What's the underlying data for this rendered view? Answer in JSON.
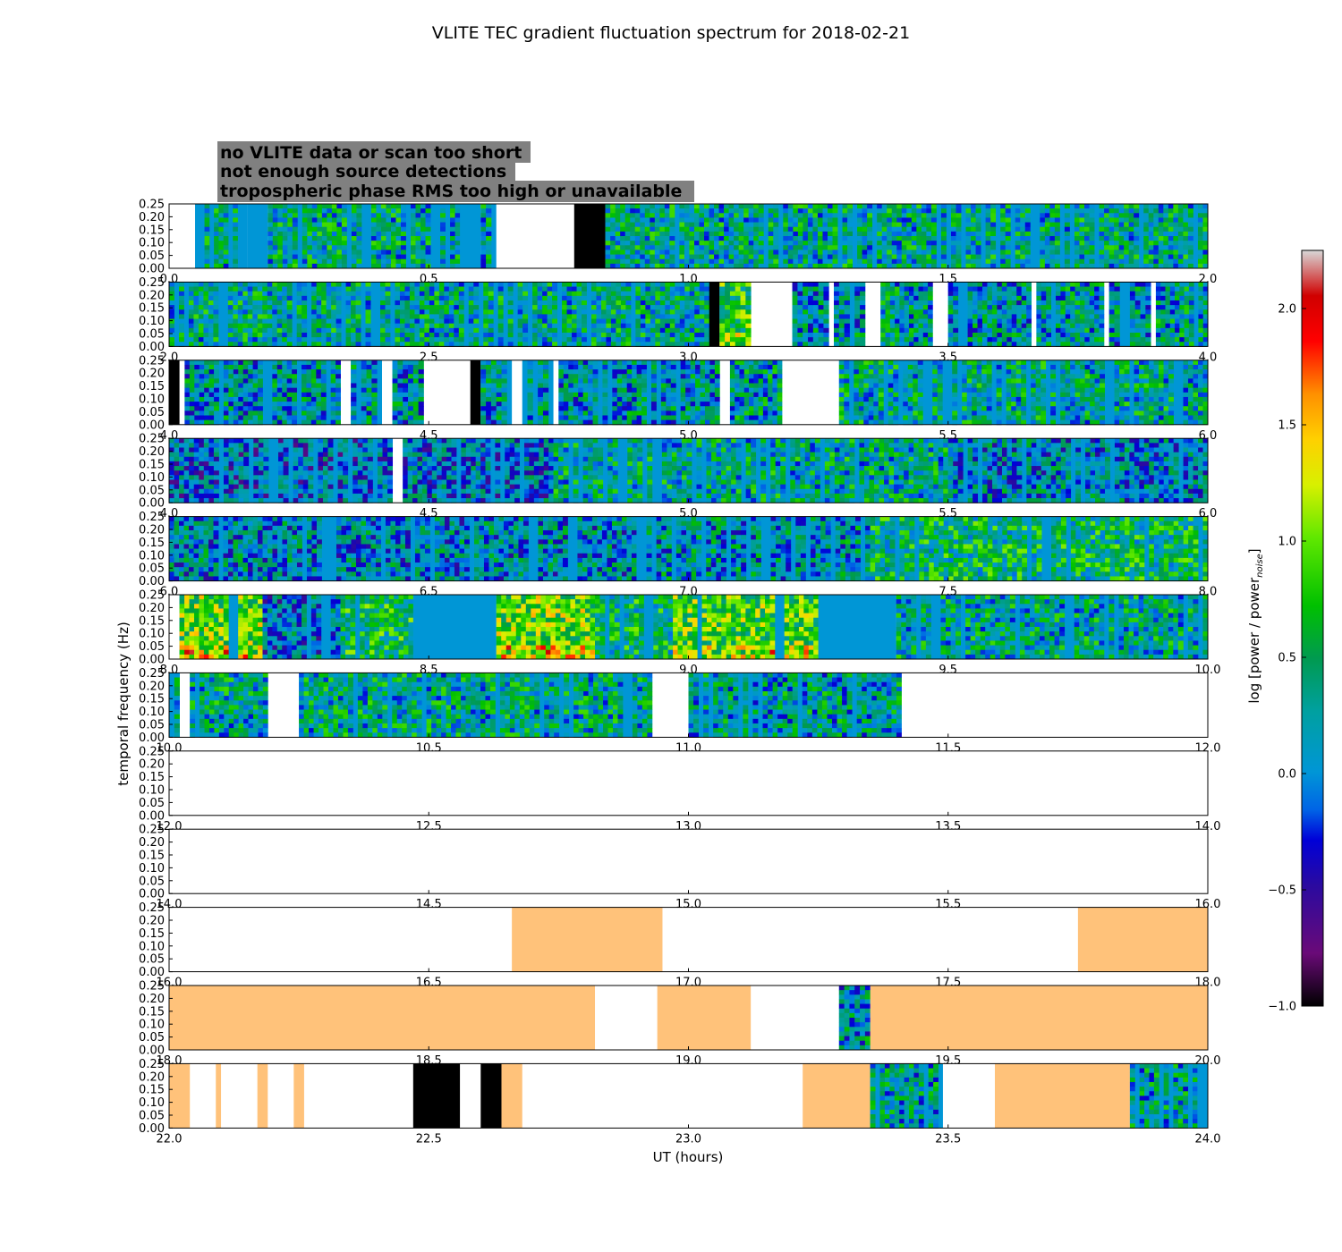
{
  "chart_data": {
    "type": "heatmap",
    "title": "VLITE TEC gradient fluctuation spectrum for 2018-02-21",
    "xlabel": "UT (hours)",
    "ylabel": "temporal frequency (Hz)",
    "colorbar_label": "log [power / power",
    "colorbar_label_sub": "noise",
    "colorbar_label_close": "]",
    "colorbar_range": [
      -1.0,
      2.25
    ],
    "colorbar_ticks": [
      "2.0",
      "1.5",
      "1.0",
      "0.5",
      "0.0",
      "−0.5",
      "−1.0"
    ],
    "colorbar_tick_values": [
      2.0,
      1.5,
      1.0,
      0.5,
      0.0,
      -0.5,
      -1.0
    ],
    "ytick_labels": [
      "0.25",
      "0.20",
      "0.15",
      "0.10",
      "0.05",
      "0.00"
    ],
    "ytick_values": [
      0.25,
      0.2,
      0.15,
      0.1,
      0.05,
      0.0
    ],
    "ylim": [
      0,
      0.25
    ],
    "legend": [
      {
        "text": "no VLITE data or scan too short",
        "text_color": "#ffffff"
      },
      {
        "text": "not enough source detections",
        "text_color": "#000000"
      },
      {
        "text": "tropospheric phase RMS too high or unavailable",
        "text_color": "#ffc27a"
      }
    ],
    "legend_box_color": "#808080",
    "colors": {
      "flag_black": "#000000",
      "flag_troposphere": "#ffc27a",
      "no_data": "#ffffff",
      "base": "#0096d6"
    },
    "panels": [
      {
        "xlim": [
          0.0,
          2.0
        ],
        "xticks": [
          "0.0",
          "0.5",
          "1.0",
          "1.5",
          "2.0"
        ],
        "segments": [
          {
            "start": 0.05,
            "end": 0.15,
            "kind": "noise",
            "level": 0.35
          },
          {
            "start": 0.15,
            "end": 0.19,
            "kind": "quiet"
          },
          {
            "start": 0.19,
            "end": 0.56,
            "kind": "noise",
            "level": 0.35
          },
          {
            "start": 0.56,
            "end": 0.6,
            "kind": "quiet"
          },
          {
            "start": 0.6,
            "end": 0.63,
            "kind": "noise",
            "level": 0.3
          },
          {
            "start": 0.78,
            "end": 0.84,
            "kind": "black"
          },
          {
            "start": 0.84,
            "end": 2.0,
            "kind": "noise",
            "level": 0.35
          }
        ]
      },
      {
        "xlim": [
          2.0,
          4.0
        ],
        "xticks": [
          "2.0",
          "2.5",
          "3.0",
          "3.5",
          "4.0"
        ],
        "segments": [
          {
            "start": 2.0,
            "end": 3.04,
            "kind": "noise",
            "level": 0.35
          },
          {
            "start": 3.04,
            "end": 3.06,
            "kind": "black"
          },
          {
            "start": 3.06,
            "end": 3.12,
            "kind": "noise",
            "level": 0.6
          },
          {
            "start": 3.2,
            "end": 3.27,
            "kind": "noise",
            "level": 0.25
          },
          {
            "start": 3.28,
            "end": 3.34,
            "kind": "noise",
            "level": 0.25
          },
          {
            "start": 3.37,
            "end": 3.47,
            "kind": "noise",
            "level": 0.3
          },
          {
            "start": 3.5,
            "end": 3.66,
            "kind": "noise",
            "level": 0.25
          },
          {
            "start": 3.67,
            "end": 3.8,
            "kind": "noise",
            "level": 0.3
          },
          {
            "start": 3.81,
            "end": 3.89,
            "kind": "noise",
            "level": 0.25
          },
          {
            "start": 3.9,
            "end": 4.0,
            "kind": "noise",
            "level": 0.3
          }
        ]
      },
      {
        "xlim": [
          4.0,
          6.0
        ],
        "xticks": [
          "4.0",
          "4.5",
          "5.0",
          "5.5",
          "6.0"
        ],
        "segments": [
          {
            "start": 4.0,
            "end": 4.02,
            "kind": "black"
          },
          {
            "start": 4.03,
            "end": 4.33,
            "kind": "noise",
            "level": 0.25
          },
          {
            "start": 4.35,
            "end": 4.41,
            "kind": "noise",
            "level": 0.25
          },
          {
            "start": 4.43,
            "end": 4.49,
            "kind": "noise",
            "level": 0.25
          },
          {
            "start": 4.58,
            "end": 4.6,
            "kind": "black"
          },
          {
            "start": 4.6,
            "end": 4.66,
            "kind": "noise",
            "level": 0.25
          },
          {
            "start": 4.68,
            "end": 4.74,
            "kind": "noise",
            "level": 0.25
          },
          {
            "start": 4.75,
            "end": 5.06,
            "kind": "noise",
            "level": 0.25
          },
          {
            "start": 5.08,
            "end": 5.18,
            "kind": "noise",
            "level": 0.3
          },
          {
            "start": 5.29,
            "end": 6.0,
            "kind": "noise",
            "level": 0.35
          }
        ]
      },
      {
        "xlim": [
          4.0,
          6.0
        ],
        "xticks": [
          "4.0",
          "4.5",
          "5.0",
          "5.5",
          "6.0"
        ],
        "segments": [
          {
            "start": 4.0,
            "end": 4.43,
            "kind": "noise",
            "level": 0.1
          },
          {
            "start": 4.45,
            "end": 4.74,
            "kind": "noise",
            "level": 0.15
          },
          {
            "start": 4.74,
            "end": 5.5,
            "kind": "noise",
            "level": 0.35
          },
          {
            "start": 5.5,
            "end": 6.0,
            "kind": "noise",
            "level": 0.2
          }
        ]
      },
      {
        "xlim": [
          6.0,
          8.0
        ],
        "xticks": [
          "6.0",
          "6.5",
          "7.0",
          "7.5",
          "8.0"
        ],
        "segments": [
          {
            "start": 6.0,
            "end": 6.9,
            "kind": "noise",
            "level": 0.2
          },
          {
            "start": 6.9,
            "end": 7.35,
            "kind": "noise",
            "level": 0.25
          },
          {
            "start": 7.35,
            "end": 8.0,
            "kind": "noise",
            "level": 0.45
          }
        ]
      },
      {
        "xlim": [
          8.0,
          10.0
        ],
        "xticks": [
          "8.0",
          "8.5",
          "9.0",
          "9.5",
          "10.0"
        ],
        "segments": [
          {
            "start": 8.02,
            "end": 8.18,
            "kind": "noise",
            "level": 0.75
          },
          {
            "start": 8.18,
            "end": 8.33,
            "kind": "noise",
            "level": 0.15
          },
          {
            "start": 8.33,
            "end": 8.47,
            "kind": "noise",
            "level": 0.5
          },
          {
            "start": 8.47,
            "end": 8.63,
            "kind": "quiet"
          },
          {
            "start": 8.63,
            "end": 8.82,
            "kind": "noise",
            "level": 0.75
          },
          {
            "start": 8.82,
            "end": 8.97,
            "kind": "noise",
            "level": 0.45
          },
          {
            "start": 8.97,
            "end": 9.25,
            "kind": "noise",
            "level": 0.7
          },
          {
            "start": 9.25,
            "end": 9.4,
            "kind": "quiet"
          },
          {
            "start": 9.4,
            "end": 10.0,
            "kind": "noise",
            "level": 0.35
          }
        ]
      },
      {
        "xlim": [
          10.0,
          12.0
        ],
        "xticks": [
          "10.0",
          "10.5",
          "11.0",
          "11.5",
          "12.0"
        ],
        "segments": [
          {
            "start": 10.0,
            "end": 10.02,
            "kind": "noise",
            "level": 0.3
          },
          {
            "start": 10.04,
            "end": 10.19,
            "kind": "noise",
            "level": 0.35
          },
          {
            "start": 10.25,
            "end": 10.93,
            "kind": "noise",
            "level": 0.35
          },
          {
            "start": 11.0,
            "end": 11.41,
            "kind": "noise",
            "level": 0.3
          }
        ]
      },
      {
        "xlim": [
          12.0,
          14.0
        ],
        "xticks": [
          "12.0",
          "12.5",
          "13.0",
          "13.5",
          "14.0"
        ],
        "segments": []
      },
      {
        "xlim": [
          14.0,
          16.0
        ],
        "xticks": [
          "14.0",
          "14.5",
          "15.0",
          "15.5",
          "16.0"
        ],
        "segments": []
      },
      {
        "xlim": [
          16.0,
          18.0
        ],
        "xticks": [
          "16.0",
          "16.5",
          "17.0",
          "17.5",
          "18.0"
        ],
        "segments": [
          {
            "start": 16.66,
            "end": 16.95,
            "kind": "tropo"
          },
          {
            "start": 17.75,
            "end": 18.0,
            "kind": "tropo"
          }
        ]
      },
      {
        "xlim": [
          18.0,
          20.0
        ],
        "xticks": [
          "18.0",
          "18.5",
          "19.0",
          "19.5",
          "20.0"
        ],
        "segments": [
          {
            "start": 18.0,
            "end": 18.82,
            "kind": "tropo"
          },
          {
            "start": 18.94,
            "end": 19.12,
            "kind": "tropo"
          },
          {
            "start": 19.29,
            "end": 19.35,
            "kind": "noise",
            "level": 0.25
          },
          {
            "start": 19.35,
            "end": 20.0,
            "kind": "tropo"
          }
        ]
      },
      {
        "xlim": [
          22.0,
          24.0
        ],
        "xticks": [
          "22.0",
          "22.5",
          "23.0",
          "23.5",
          "24.0"
        ],
        "segments": [
          {
            "start": 22.0,
            "end": 22.04,
            "kind": "tropo"
          },
          {
            "start": 22.09,
            "end": 22.1,
            "kind": "tropo"
          },
          {
            "start": 22.17,
            "end": 22.19,
            "kind": "tropo"
          },
          {
            "start": 22.24,
            "end": 22.26,
            "kind": "tropo"
          },
          {
            "start": 22.47,
            "end": 22.56,
            "kind": "black"
          },
          {
            "start": 22.6,
            "end": 22.64,
            "kind": "black"
          },
          {
            "start": 22.64,
            "end": 22.68,
            "kind": "tropo"
          },
          {
            "start": 23.22,
            "end": 23.35,
            "kind": "tropo"
          },
          {
            "start": 23.35,
            "end": 23.49,
            "kind": "noise",
            "level": 0.3
          },
          {
            "start": 23.59,
            "end": 23.85,
            "kind": "tropo"
          },
          {
            "start": 23.85,
            "end": 23.98,
            "kind": "noise",
            "level": 0.3
          },
          {
            "start": 23.98,
            "end": 24.0,
            "kind": "quiet"
          }
        ]
      }
    ]
  }
}
